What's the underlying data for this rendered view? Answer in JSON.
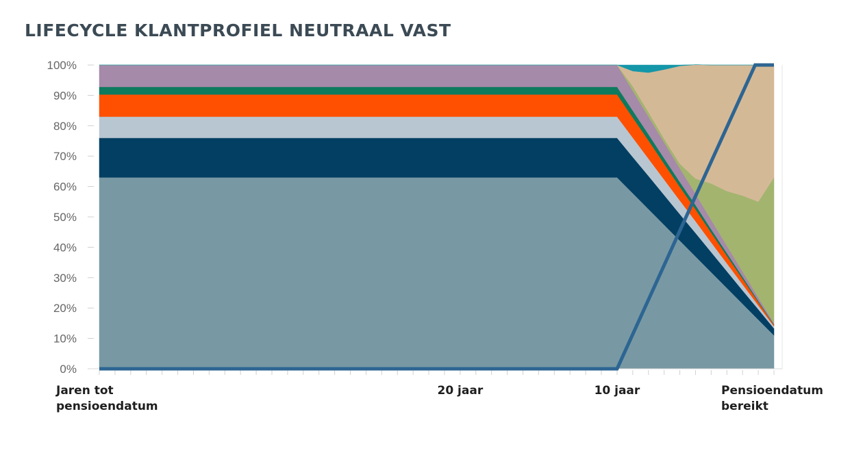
{
  "chart_data": {
    "type": "area",
    "stacked": true,
    "title": "LIFECYCLE KLANTPROFIEL NEUTRAAL VAST",
    "xlabel": "",
    "ylabel": "",
    "x": [
      43,
      10,
      9,
      8,
      7,
      6,
      5,
      4,
      3,
      2,
      1,
      0
    ],
    "x_range": [
      43,
      0
    ],
    "ylim": [
      0,
      100
    ],
    "y_ticks": [
      "0%",
      "10%",
      "20%",
      "30%",
      "40%",
      "50%",
      "60%",
      "70%",
      "80%",
      "90%",
      "100%"
    ],
    "x_tick_labels": [
      {
        "x": 43,
        "lines": [
          "Jaren tot",
          "pensioendatum"
        ]
      },
      {
        "x": 20,
        "lines": [
          "20 jaar"
        ]
      },
      {
        "x": 10,
        "lines": [
          "10 jaar"
        ]
      },
      {
        "x": 0,
        "lines": [
          "Pensioendatum",
          "bereikt"
        ]
      }
    ],
    "series": [
      {
        "name": "series-1",
        "color": "#7899a4",
        "values": [
          63,
          63,
          57.8,
          52.6,
          47.4,
          42.2,
          37,
          31.8,
          26.6,
          21.4,
          16.2,
          11
        ]
      },
      {
        "name": "series-2",
        "color": "#033f63",
        "values": [
          13,
          13,
          11.9,
          10.9,
          9.8,
          8.7,
          7.7,
          6.6,
          5.5,
          4.4,
          3.4,
          2.3
        ]
      },
      {
        "name": "series-3",
        "color": "#b8c6d1",
        "values": [
          7,
          7,
          6.4,
          5.7,
          5.1,
          4.5,
          3.9,
          3.2,
          2.6,
          2,
          1.3,
          0.7
        ]
      },
      {
        "name": "series-4",
        "color": "#fe5000",
        "values": [
          7.3,
          7.3,
          6.6,
          6,
          5.2,
          4.5,
          3.9,
          3.2,
          2.5,
          1.8,
          1.1,
          0.4
        ]
      },
      {
        "name": "series-5",
        "color": "#0e7a5e",
        "values": [
          2.5,
          2.5,
          2.3,
          2,
          1.8,
          1.6,
          1.4,
          1.1,
          0.9,
          0.7,
          0.4,
          0.2
        ]
      },
      {
        "name": "series-6",
        "color": "#a68aa9",
        "values": [
          7.2,
          7.2,
          6.5,
          5.8,
          5.2,
          4.5,
          3.7,
          3.1,
          2.4,
          1.7,
          1.1,
          0.4
        ]
      },
      {
        "name": "series-7",
        "color": "#a3b46f",
        "values": [
          0,
          0,
          1.5,
          1.5,
          1.2,
          1.5,
          5,
          12,
          18,
          25,
          31.5,
          48
        ]
      },
      {
        "name": "series-8",
        "color": "#d4b997",
        "values": [
          0,
          0,
          5,
          13,
          22.8,
          32.2,
          37.5,
          39,
          41.5,
          43,
          45,
          37
        ]
      },
      {
        "name": "series-9",
        "color": "#1497a8",
        "values": [
          0,
          0,
          2,
          2.5,
          1.5,
          0.3,
          0,
          0,
          0,
          0,
          0,
          0
        ]
      }
    ],
    "line": {
      "name": "glide-line",
      "color": "#2d6592",
      "x": [
        43,
        10,
        1.2,
        0
      ],
      "values": [
        0,
        0,
        100,
        100
      ]
    },
    "grid": false,
    "legend": "none"
  }
}
